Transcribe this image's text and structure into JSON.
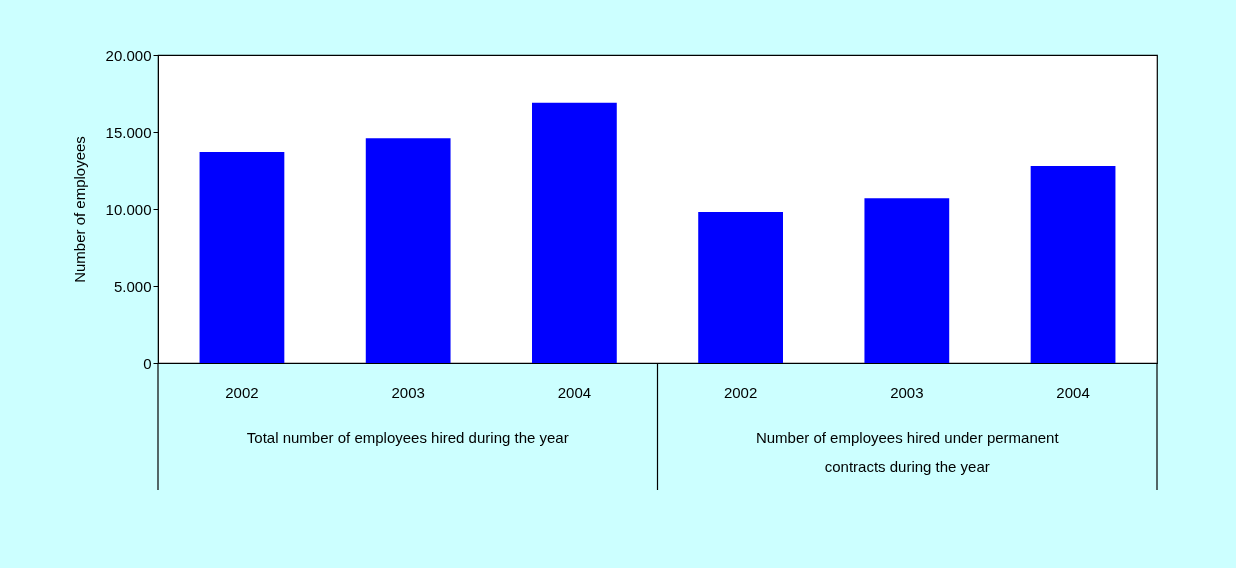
{
  "chart_data": {
    "type": "bar",
    "ylabel": "Number of employees",
    "categories": [
      "2002",
      "2003",
      "2004",
      "2002",
      "2003",
      "2004"
    ],
    "values": [
      13700,
      14600,
      16900,
      9800,
      10700,
      12800
    ],
    "color": "#0000ff",
    "ylim": [
      0,
      20000
    ],
    "yticks": [
      {
        "value": 0,
        "label": "0"
      },
      {
        "value": 5000,
        "label": "5.000"
      },
      {
        "value": 10000,
        "label": "10.000"
      },
      {
        "value": 15000,
        "label": "15.000"
      },
      {
        "value": 20000,
        "label": "20.000"
      }
    ],
    "annotations": [
      "Total number of employees hired during the year",
      "Number of employees hired under permanent contracts during the year"
    ],
    "grid": false
  }
}
